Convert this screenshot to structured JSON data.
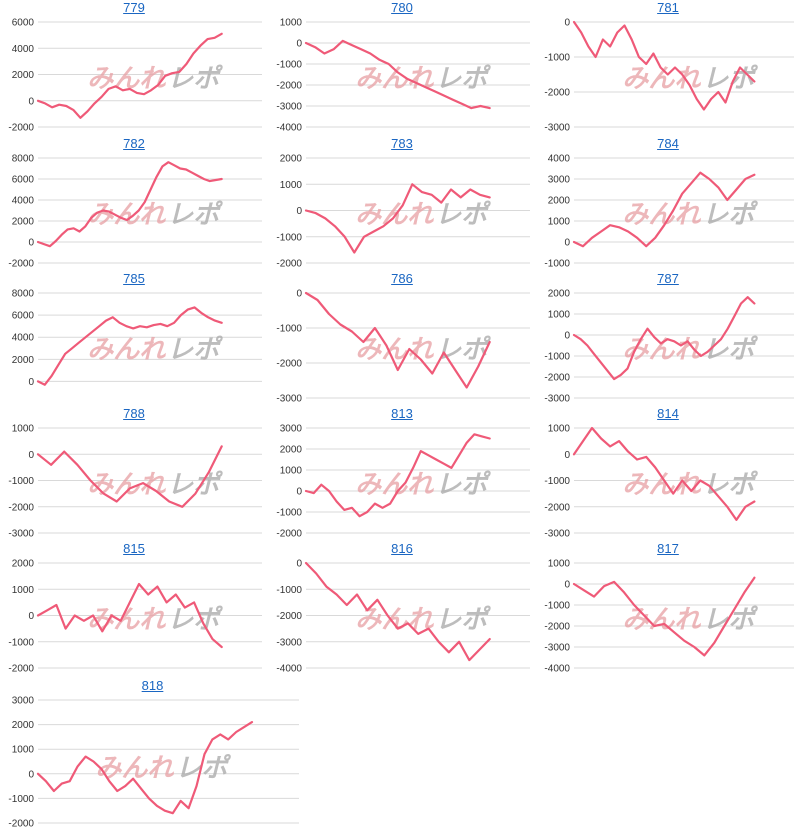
{
  "watermark": {
    "part1": "みんれ",
    "part2": "レポ",
    "color1": "#e8a0a4",
    "color2": "#a8a8a8"
  },
  "line_color": "#ef5a78",
  "chart_data": [
    {
      "type": "line",
      "title": "779",
      "yticks": [
        -2000,
        0,
        2000,
        4000,
        6000
      ],
      "ylim": [
        -2000,
        6000
      ],
      "values": [
        0,
        -200,
        -500,
        -300,
        -400,
        -700,
        -1300,
        -800,
        -200,
        300,
        900,
        1100,
        800,
        900,
        600,
        500,
        800,
        1200,
        1900,
        2100,
        2200,
        2800,
        3600,
        4200,
        4700,
        4800,
        5100
      ]
    },
    {
      "type": "line",
      "title": "780",
      "yticks": [
        -4000,
        -3000,
        -2000,
        -1000,
        0,
        1000
      ],
      "ylim": [
        -4000,
        1000
      ],
      "values": [
        0,
        -200,
        -500,
        -300,
        100,
        -100,
        -300,
        -500,
        -800,
        -1000,
        -1400,
        -1700,
        -1900,
        -2100,
        -2300,
        -2500,
        -2700,
        -2900,
        -3100,
        -3000,
        -3100
      ]
    },
    {
      "type": "line",
      "title": "781",
      "yticks": [
        -3000,
        -2000,
        -1000,
        0
      ],
      "ylim": [
        -3000,
        0
      ],
      "values": [
        0,
        -300,
        -700,
        -1000,
        -500,
        -700,
        -300,
        -100,
        -500,
        -1000,
        -1200,
        -900,
        -1300,
        -1500,
        -1300,
        -1500,
        -1800,
        -2200,
        -2500,
        -2200,
        -2000,
        -2300,
        -1700,
        -1300,
        -1500,
        -1700
      ]
    },
    {
      "type": "line",
      "title": "782",
      "yticks": [
        -2000,
        0,
        2000,
        4000,
        6000,
        8000
      ],
      "ylim": [
        -2000,
        8000
      ],
      "values": [
        0,
        -200,
        -400,
        100,
        700,
        1200,
        1300,
        1000,
        1500,
        2300,
        2800,
        3000,
        2900,
        2600,
        2300,
        2100,
        2500,
        3000,
        3800,
        5000,
        6200,
        7200,
        7600,
        7300,
        7000,
        6900,
        6600,
        6300,
        6000,
        5800,
        5900,
        6000
      ]
    },
    {
      "type": "line",
      "title": "783",
      "yticks": [
        -2000,
        -1000,
        0,
        1000,
        2000
      ],
      "ylim": [
        -2000,
        2000
      ],
      "values": [
        0,
        -100,
        -300,
        -600,
        -1000,
        -1600,
        -1000,
        -800,
        -600,
        -300,
        200,
        1000,
        700,
        600,
        300,
        800,
        500,
        800,
        600,
        500
      ]
    },
    {
      "type": "line",
      "title": "784",
      "yticks": [
        -1000,
        0,
        1000,
        2000,
        3000,
        4000
      ],
      "ylim": [
        -1000,
        4000
      ],
      "values": [
        0,
        -200,
        200,
        500,
        800,
        700,
        500,
        200,
        -200,
        200,
        800,
        1500,
        2300,
        2800,
        3300,
        3000,
        2600,
        2000,
        2500,
        3000,
        3200
      ]
    },
    {
      "type": "line",
      "title": "785",
      "yticks": [
        0,
        2000,
        4000,
        6000,
        8000
      ],
      "ylim": [
        -1500,
        8000
      ],
      "values": [
        0,
        -300,
        500,
        1500,
        2500,
        3000,
        3500,
        4000,
        4500,
        5000,
        5500,
        5800,
        5300,
        5000,
        4800,
        5000,
        4900,
        5100,
        5200,
        5000,
        5300,
        6000,
        6500,
        6700,
        6200,
        5800,
        5500,
        5300
      ]
    },
    {
      "type": "line",
      "title": "786",
      "yticks": [
        -3000,
        -2000,
        -1000,
        0
      ],
      "ylim": [
        -3000,
        0
      ],
      "values": [
        0,
        -200,
        -600,
        -900,
        -1100,
        -1400,
        -1000,
        -1500,
        -2200,
        -1600,
        -1900,
        -2300,
        -1700,
        -2200,
        -2700,
        -2100,
        -1400
      ]
    },
    {
      "type": "line",
      "title": "787",
      "yticks": [
        -3000,
        -2000,
        -1000,
        0,
        1000,
        2000
      ],
      "ylim": [
        -3000,
        2000
      ],
      "values": [
        0,
        -200,
        -500,
        -900,
        -1300,
        -1700,
        -2100,
        -1900,
        -1600,
        -800,
        -200,
        300,
        -100,
        -400,
        -200,
        -300,
        -500,
        -300,
        -700,
        -1000,
        -800,
        -500,
        -200,
        300,
        900,
        1500,
        1800,
        1500
      ]
    },
    {
      "type": "line",
      "title": "788",
      "yticks": [
        -3000,
        -2000,
        -1000,
        0,
        1000
      ],
      "ylim": [
        -3000,
        1000
      ],
      "values": [
        0,
        -400,
        100,
        -400,
        -1000,
        -1500,
        -1800,
        -1300,
        -1100,
        -1400,
        -1800,
        -2000,
        -1500,
        -700,
        300
      ]
    },
    {
      "type": "line",
      "title": "813",
      "yticks": [
        -2000,
        -1000,
        0,
        1000,
        2000,
        3000
      ],
      "ylim": [
        -2000,
        3000
      ],
      "values": [
        0,
        -100,
        300,
        0,
        -500,
        -900,
        -800,
        -1200,
        -1000,
        -600,
        -800,
        -600,
        0,
        400,
        1100,
        1900,
        1700,
        1500,
        1300,
        1100,
        1700,
        2300,
        2700,
        2600,
        2500
      ]
    },
    {
      "type": "line",
      "title": "814",
      "yticks": [
        -3000,
        -2000,
        -1000,
        0,
        1000
      ],
      "ylim": [
        -3000,
        1000
      ],
      "values": [
        0,
        500,
        1000,
        600,
        300,
        500,
        100,
        -200,
        -100,
        -500,
        -1000,
        -1500,
        -1000,
        -1400,
        -1000,
        -1200,
        -1600,
        -2000,
        -2500,
        -2000,
        -1800
      ]
    },
    {
      "type": "line",
      "title": "815",
      "yticks": [
        -2000,
        -1000,
        0,
        1000,
        2000
      ],
      "ylim": [
        -2000,
        2000
      ],
      "values": [
        0,
        200,
        400,
        -500,
        0,
        -200,
        0,
        -600,
        0,
        -200,
        500,
        1200,
        800,
        1100,
        500,
        800,
        300,
        500,
        -300,
        -900,
        -1200
      ]
    },
    {
      "type": "line",
      "title": "816",
      "yticks": [
        -4000,
        -3000,
        -2000,
        -1000,
        0
      ],
      "ylim": [
        -4000,
        0
      ],
      "values": [
        0,
        -400,
        -900,
        -1200,
        -1600,
        -1200,
        -1800,
        -1400,
        -2000,
        -2500,
        -2300,
        -2700,
        -2500,
        -3000,
        -3400,
        -3000,
        -3700,
        -3300,
        -2900
      ]
    },
    {
      "type": "line",
      "title": "817",
      "yticks": [
        -4000,
        -3000,
        -2000,
        -1000,
        0,
        1000
      ],
      "ylim": [
        -4000,
        1000
      ],
      "values": [
        0,
        -300,
        -600,
        -100,
        100,
        -400,
        -1000,
        -1500,
        -2000,
        -1900,
        -2300,
        -2700,
        -3000,
        -3400,
        -2800,
        -2000,
        -1200,
        -400,
        300
      ]
    },
    {
      "type": "line",
      "title": "818",
      "yticks": [
        -2000,
        -1000,
        0,
        1000,
        2000,
        3000
      ],
      "ylim": [
        -2000,
        3000
      ],
      "values": [
        0,
        -300,
        -700,
        -400,
        -300,
        300,
        700,
        500,
        200,
        -300,
        -700,
        -500,
        -200,
        -600,
        -1000,
        -1300,
        -1500,
        -1600,
        -1100,
        -1400,
        -500,
        800,
        1400,
        1600,
        1400,
        1700,
        1900,
        2100
      ]
    }
  ]
}
